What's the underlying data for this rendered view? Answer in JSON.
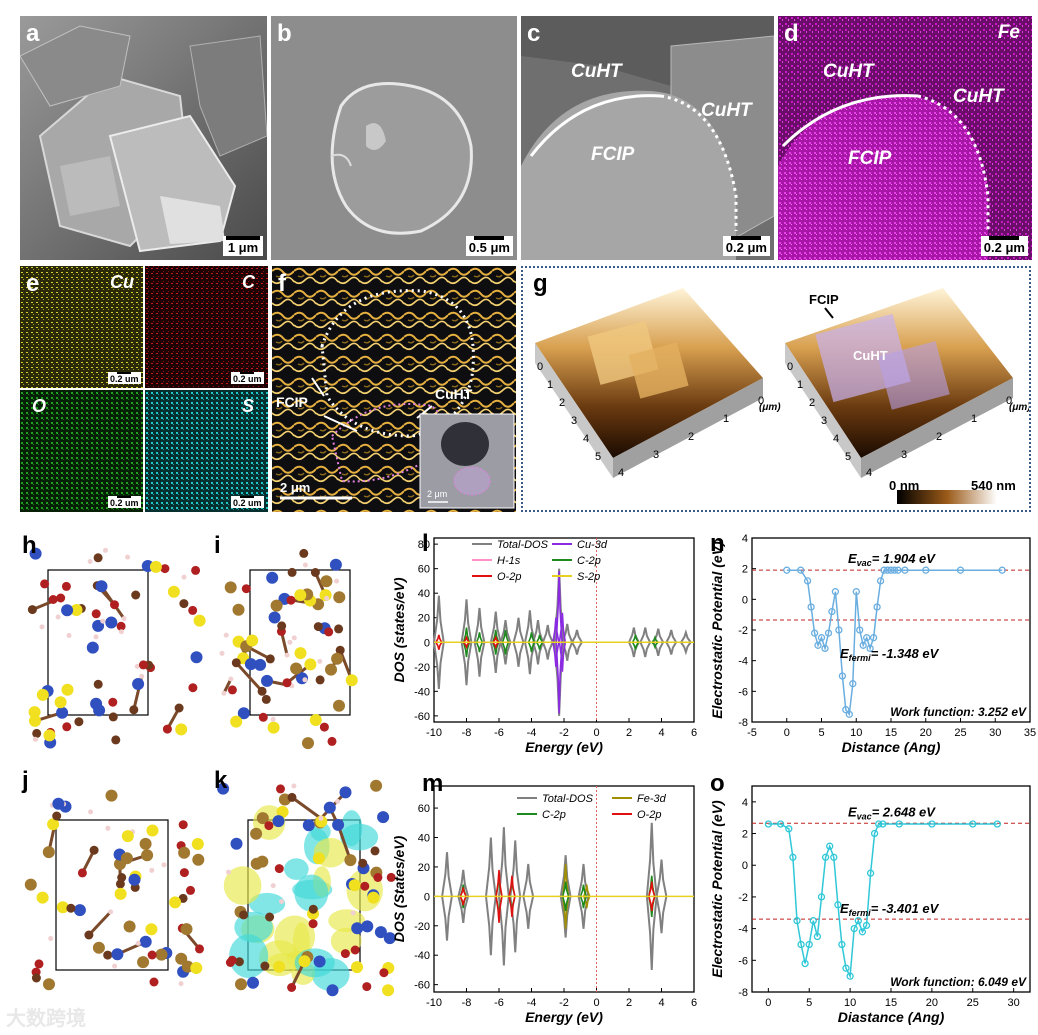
{
  "panel_labels": {
    "a": "a",
    "b": "b",
    "c": "c",
    "d": "d",
    "e": "e",
    "f": "f",
    "g": "g",
    "h": "h",
    "i": "i",
    "j": "j",
    "k": "k",
    "l": "l",
    "m": "m",
    "n": "n",
    "o": "o"
  },
  "scalebars": {
    "a": "1 μm",
    "b": "0.5 μm",
    "c": "0.2 μm",
    "d": "0.2 μm",
    "e1": "0.2 um",
    "e2": "0.2 um",
    "e3": "0.2 um",
    "e4": "0.2 um",
    "f": "2 μm",
    "f_inset": "2 μm"
  },
  "sem_labels": {
    "c_cuht1": "CuHT",
    "c_cuht2": "CuHT",
    "c_fcip": "FCIP",
    "d_fe": "Fe",
    "d_cuht1": "CuHT",
    "d_cuht2": "CuHT",
    "d_fcip": "FCIP"
  },
  "eds": {
    "cu": "Cu",
    "c": "C",
    "o": "O",
    "s": "S"
  },
  "f_labels": {
    "fcip": "FCIP",
    "cuht": "CuHT"
  },
  "afm": {
    "fcip": "FCIP",
    "cuht": "CuHT",
    "unit1": "(μm)",
    "unit2": "(μm)",
    "scale_min": "0 nm",
    "scale_max": "540 nm",
    "ticks_a": [
      "0",
      "1",
      "2",
      "3",
      "4",
      "5"
    ],
    "ticks_b": [
      "5",
      "4",
      "3",
      "2",
      "1",
      "0"
    ]
  },
  "colors": {
    "cu": "#d8d030",
    "c": "#c41818",
    "o": "#20a020",
    "s": "#20c8c8",
    "fe": "#c818c8",
    "total": "#808080",
    "cu3d": "#8a2be2",
    "h1s": "#ff90c8",
    "c2p": "#1e8a1e",
    "o2p": "#e01010",
    "s2p": "#e8d020",
    "fe3d": "#a09000",
    "pot_n": "#6aaee0",
    "pot_o": "#30c8d8"
  },
  "chart_data": [
    {
      "type": "line",
      "panel": "l",
      "xlabel": "Energy (eV)",
      "ylabel": "DOS (states/eV)",
      "xlim": [
        -10,
        6
      ],
      "ylim": [
        -65,
        85
      ],
      "xticks": [
        -10,
        -8,
        -6,
        -4,
        -2,
        0,
        2,
        4,
        6
      ],
      "yticks": [
        -60,
        -40,
        -20,
        0,
        20,
        40,
        60,
        80
      ],
      "legend": [
        "Total-DOS",
        "Cu-3d",
        "H-1s",
        "C-2p",
        "O-2p",
        "S-2p"
      ],
      "series": [
        {
          "name": "Total-DOS",
          "x": [
            -9.7,
            -8.0,
            -7.2,
            -6.2,
            -5.6,
            -4.8,
            -4.1,
            -3.6,
            -3.0,
            -2.3,
            -1.8,
            -1.2,
            2.3,
            3.0,
            3.8,
            4.6,
            5.5
          ],
          "values": [
            38,
            35,
            28,
            25,
            18,
            20,
            26,
            18,
            14,
            60,
            15,
            10,
            12,
            12,
            11,
            10,
            8
          ]
        },
        {
          "name": "Cu-3d",
          "x": [
            -2.5,
            -2.3,
            -2.1
          ],
          "values": [
            20,
            58,
            24
          ]
        },
        {
          "name": "C-2p",
          "x": [
            -8.0,
            -7.2,
            -6.2,
            -5.6,
            -4.0,
            -3.5,
            2.4,
            3.6
          ],
          "values": [
            12,
            8,
            10,
            10,
            8,
            6,
            6,
            4
          ]
        },
        {
          "name": "O-2p",
          "x": [
            -9.7,
            -8.0,
            -6.2
          ],
          "values": [
            6,
            4,
            4
          ]
        }
      ]
    },
    {
      "type": "line",
      "panel": "m",
      "xlabel": "Energy (eV)",
      "ylabel": "DOS (States/eV)",
      "xlim": [
        -10,
        6
      ],
      "ylim": [
        -65,
        75
      ],
      "xticks": [
        -10,
        -8,
        -6,
        -4,
        -2,
        0,
        2,
        4,
        6
      ],
      "yticks": [
        -60,
        -40,
        -20,
        0,
        20,
        40,
        60
      ],
      "legend": [
        "Total-DOS",
        "Fe-3d",
        "C-2p",
        "O-2p"
      ],
      "series": [
        {
          "name": "Total-DOS",
          "x": [
            -9.2,
            -8.2,
            -6.5,
            -5.7,
            -5.0,
            -4.2,
            -1.9,
            -0.8,
            3.4,
            4.0
          ],
          "values": [
            30,
            18,
            40,
            47,
            38,
            22,
            28,
            22,
            50,
            25
          ]
        },
        {
          "name": "Fe-3d",
          "x": [
            -1.9,
            -0.6
          ],
          "values": [
            22,
            8
          ]
        },
        {
          "name": "C-2p",
          "x": [
            -8.2,
            -6.0,
            -5.2,
            -1.9,
            -0.8,
            3.4
          ],
          "values": [
            8,
            14,
            12,
            10,
            8,
            14
          ]
        },
        {
          "name": "O-2p",
          "x": [
            -8.2,
            -6.0,
            -5.2,
            3.4
          ],
          "values": [
            6,
            18,
            14,
            10
          ]
        }
      ]
    },
    {
      "type": "scatter",
      "panel": "n",
      "xlabel": "Distance (Ang)",
      "ylabel": "Electrostatic Potential (eV)",
      "xlim": [
        -5,
        35
      ],
      "ylim": [
        -8,
        4
      ],
      "xticks": [
        -5,
        0,
        5,
        10,
        15,
        20,
        25,
        30,
        35
      ],
      "yticks": [
        -8,
        -6,
        -4,
        -2,
        0,
        2,
        4
      ],
      "evac": 1.904,
      "efermi": -1.348,
      "annotations": {
        "evac": "E",
        "evac_sub": "vac",
        "evac_val": "= 1.904 eV",
        "efermi": "E",
        "efermi_sub": "fermi",
        "efermi_val": "= -1.348 eV",
        "wf": "Work function: 3.252 eV"
      },
      "x": [
        0,
        2,
        3,
        3.5,
        4,
        4.5,
        5,
        5.5,
        6,
        6.5,
        7,
        7.5,
        8,
        8.5,
        9,
        9.5,
        10,
        10.5,
        11,
        11.5,
        12,
        12.5,
        13,
        13.5,
        14,
        14.5,
        15,
        15.5,
        16,
        17,
        20,
        25,
        31
      ],
      "values": [
        1.9,
        1.9,
        1.2,
        -0.5,
        -2.2,
        -3.0,
        -2.5,
        -3.2,
        -2.2,
        -0.8,
        0.5,
        -2.0,
        -5.0,
        -7.2,
        -7.5,
        -5.5,
        0.5,
        -2.0,
        -3.0,
        -2.5,
        -3.2,
        -2.5,
        -0.5,
        1.2,
        1.9,
        1.9,
        1.9,
        1.9,
        1.9,
        1.9,
        1.9,
        1.9,
        1.9
      ]
    },
    {
      "type": "scatter",
      "panel": "o",
      "xlabel": "Diastance (Ang)",
      "ylabel": "Electrostatic Potential (eV)",
      "xlim": [
        -2,
        32
      ],
      "ylim": [
        -8,
        5
      ],
      "xticks": [
        0,
        5,
        10,
        15,
        20,
        25,
        30
      ],
      "yticks": [
        -8,
        -6,
        -4,
        -2,
        0,
        2,
        4
      ],
      "evac": 2.648,
      "efermi": -3.401,
      "annotations": {
        "evac": "E",
        "evac_sub": "vac",
        "evac_val": "= 2.648 eV",
        "efermi": "E",
        "efermi_sub": "fermi",
        "efermi_val": "= -3.401 eV",
        "wf": "Work function: 6.049 eV"
      },
      "x": [
        0,
        1.5,
        2.5,
        3,
        3.5,
        4,
        4.5,
        5,
        5.5,
        6,
        6.5,
        7,
        7.5,
        8,
        8.5,
        9,
        9.5,
        10,
        10.5,
        11,
        11.5,
        12,
        12.5,
        13,
        13.5,
        14,
        16,
        20,
        25,
        28
      ],
      "values": [
        2.6,
        2.6,
        2.3,
        0.5,
        -3.5,
        -5.0,
        -6.2,
        -5.0,
        -3.5,
        -4.5,
        -2.0,
        0.5,
        1.2,
        0.5,
        -2.5,
        -5.0,
        -6.5,
        -7.0,
        -4.0,
        -3.5,
        -4.2,
        -3.8,
        -0.5,
        2.0,
        2.6,
        2.6,
        2.6,
        2.6,
        2.6,
        2.6
      ]
    }
  ],
  "watermark": "大数跨境"
}
